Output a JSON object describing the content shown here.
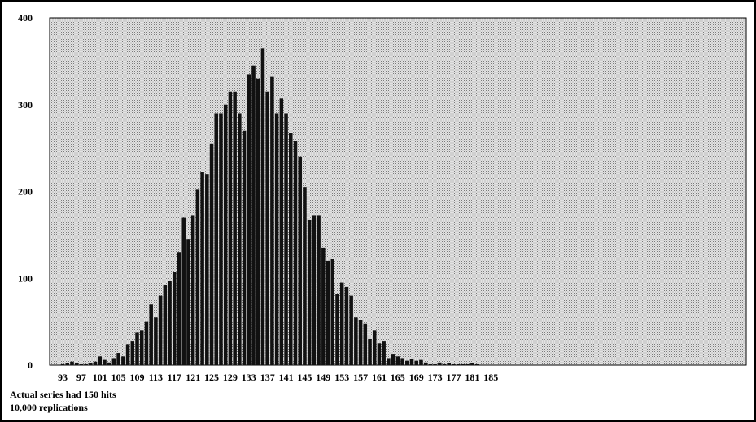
{
  "chart_data": {
    "type": "bar",
    "title": "",
    "xlabel": "",
    "ylabel": "",
    "ylim": [
      0,
      400
    ],
    "yticks": [
      0,
      100,
      200,
      300,
      400
    ],
    "xticks": [
      93,
      97,
      101,
      105,
      109,
      113,
      117,
      121,
      125,
      129,
      133,
      137,
      141,
      145,
      149,
      153,
      157,
      161,
      165,
      169,
      173,
      177,
      181,
      185
    ],
    "grid": false,
    "background": "stippled-gray",
    "bar_color": "#111111",
    "x": [
      93,
      94,
      95,
      96,
      97,
      98,
      99,
      100,
      101,
      102,
      103,
      104,
      105,
      106,
      107,
      108,
      109,
      110,
      111,
      112,
      113,
      114,
      115,
      116,
      117,
      118,
      119,
      120,
      121,
      122,
      123,
      124,
      125,
      126,
      127,
      128,
      129,
      130,
      131,
      132,
      133,
      134,
      135,
      136,
      137,
      138,
      139,
      140,
      141,
      142,
      143,
      144,
      145,
      146,
      147,
      148,
      149,
      150,
      151,
      152,
      153,
      154,
      155,
      156,
      157,
      158,
      159,
      160,
      161,
      162,
      163,
      164,
      165,
      166,
      167,
      168,
      169,
      170,
      171,
      172,
      173,
      174,
      175,
      176,
      177,
      178,
      179,
      180,
      181,
      182,
      183
    ],
    "values": [
      1,
      2,
      4,
      2,
      1,
      1,
      2,
      4,
      10,
      6,
      3,
      8,
      14,
      10,
      24,
      28,
      38,
      40,
      50,
      70,
      55,
      80,
      92,
      97,
      107,
      130,
      170,
      145,
      172,
      202,
      222,
      220,
      255,
      290,
      290,
      300,
      315,
      315,
      290,
      270,
      335,
      345,
      330,
      365,
      315,
      332,
      290,
      307,
      290,
      267,
      258,
      240,
      205,
      167,
      172,
      172,
      135,
      120,
      122,
      82,
      95,
      90,
      80,
      55,
      52,
      48,
      30,
      40,
      25,
      28,
      8,
      13,
      10,
      8,
      5,
      7,
      5,
      6,
      3,
      1,
      1,
      3,
      1,
      2,
      1,
      1,
      1,
      1,
      2,
      1,
      0
    ]
  },
  "notes": {
    "line1": "Actual series had 150 hits",
    "line2": "10,000 replications"
  }
}
